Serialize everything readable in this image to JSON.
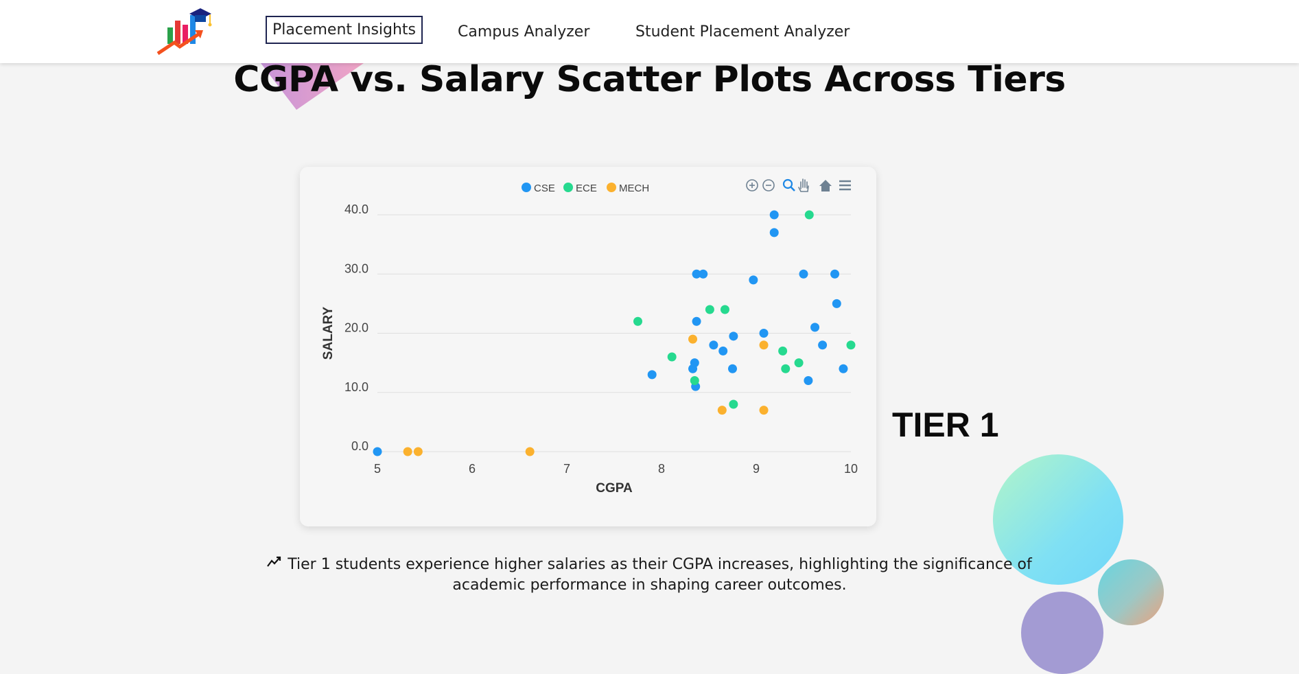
{
  "nav": {
    "items": [
      {
        "label": "Placement Insights",
        "active": true
      },
      {
        "label": "Campus Analyzer",
        "active": false
      },
      {
        "label": "Student Placement Analyzer",
        "active": false
      }
    ]
  },
  "page": {
    "title": "CGPA vs. Salary Scatter Plots Across Tiers",
    "tier_label": "TIER 1",
    "insight_text": "Tier 1 students experience higher salaries as their CGPA increases, highlighting the significance of academic performance in shaping career outcomes."
  },
  "toolbar": {
    "icons": [
      "zoom-in-icon",
      "zoom-out-icon",
      "zoom-select-icon",
      "pan-icon",
      "reset-home-icon",
      "menu-icon"
    ]
  },
  "colors": {
    "CSE": "#2196f3",
    "ECE": "#26d98f",
    "MECH": "#fbb12e",
    "accent_active": "#1e2450"
  },
  "chart_data": {
    "type": "scatter",
    "xlabel": "CGPA",
    "ylabel": "SALARY",
    "xlim": [
      5,
      10
    ],
    "ylim": [
      0,
      40
    ],
    "x_ticks": [
      "5",
      "6",
      "7",
      "8",
      "9",
      "10"
    ],
    "y_ticks": [
      "0.0",
      "10.0",
      "20.0",
      "30.0",
      "40.0"
    ],
    "grid": true,
    "legend": "top-center",
    "series": [
      {
        "name": "CSE",
        "points": [
          [
            5.0,
            0
          ],
          [
            7.9,
            13
          ],
          [
            8.33,
            14
          ],
          [
            8.35,
            15
          ],
          [
            8.36,
            11
          ],
          [
            8.37,
            22
          ],
          [
            8.37,
            30
          ],
          [
            8.44,
            30
          ],
          [
            8.55,
            18
          ],
          [
            8.65,
            17
          ],
          [
            8.75,
            14
          ],
          [
            8.76,
            19.5
          ],
          [
            8.97,
            29
          ],
          [
            9.08,
            20
          ],
          [
            9.19,
            40
          ],
          [
            9.19,
            37
          ],
          [
            9.5,
            30
          ],
          [
            9.55,
            12
          ],
          [
            9.62,
            21
          ],
          [
            9.7,
            18
          ],
          [
            9.83,
            30
          ],
          [
            9.85,
            25
          ],
          [
            9.92,
            14
          ]
        ]
      },
      {
        "name": "ECE",
        "points": [
          [
            7.75,
            22
          ],
          [
            8.11,
            16
          ],
          [
            8.35,
            12
          ],
          [
            8.51,
            24
          ],
          [
            8.67,
            24
          ],
          [
            8.76,
            8
          ],
          [
            9.28,
            17
          ],
          [
            9.31,
            14
          ],
          [
            9.45,
            15
          ],
          [
            9.56,
            40
          ],
          [
            10.0,
            18
          ]
        ]
      },
      {
        "name": "MECH",
        "points": [
          [
            5.32,
            0
          ],
          [
            5.43,
            0
          ],
          [
            6.61,
            0
          ],
          [
            8.33,
            19
          ],
          [
            8.64,
            7
          ],
          [
            9.08,
            7
          ],
          [
            9.08,
            18
          ]
        ]
      }
    ]
  }
}
